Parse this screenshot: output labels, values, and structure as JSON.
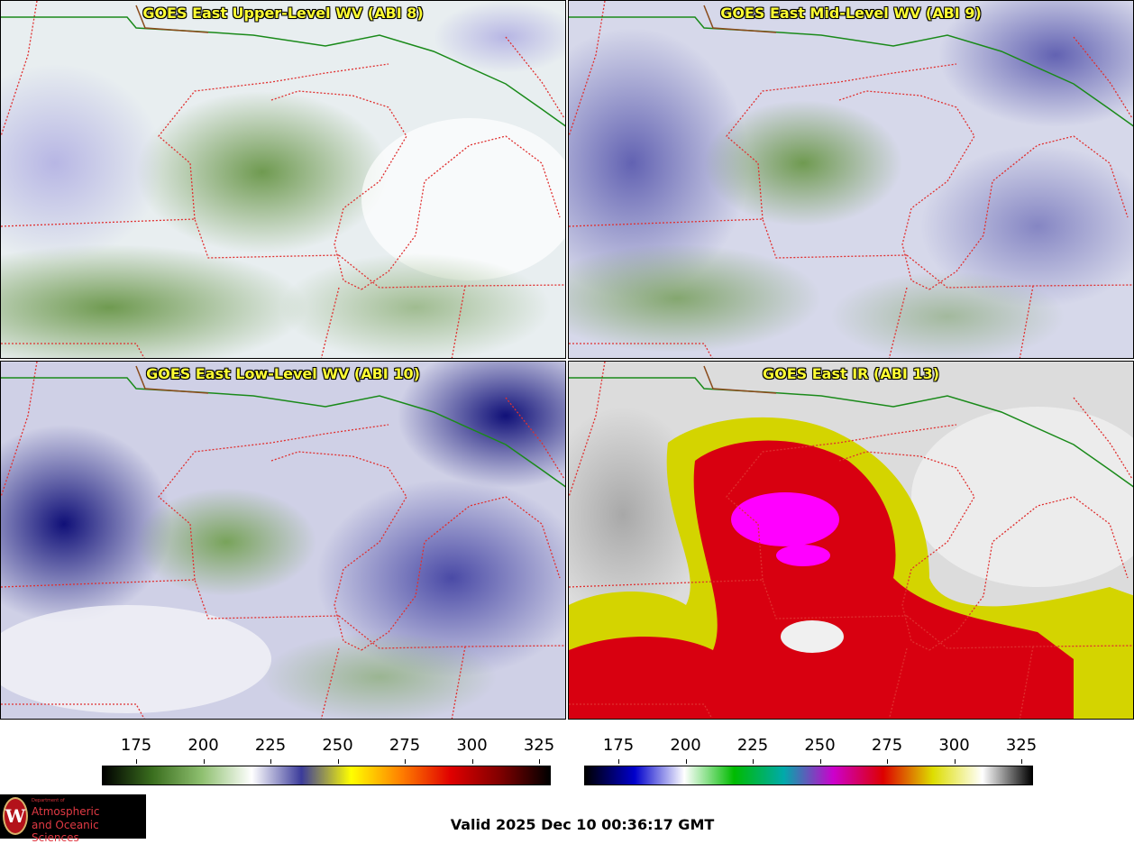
{
  "panels": [
    {
      "title": "GOES East Upper-Level WV (ABI 8)",
      "style": "wv-upper"
    },
    {
      "title": "GOES East Mid-Level WV (ABI 9)",
      "style": "wv-mid"
    },
    {
      "title": "GOES East Low-Level WV (ABI 10)",
      "style": "wv-low"
    },
    {
      "title": "GOES East IR (ABI 13)",
      "style": "ir"
    }
  ],
  "colorbars": [
    {
      "name": "wv-colorbar",
      "ticks": [
        "175",
        "200",
        "225",
        "250",
        "275",
        "300",
        "325"
      ],
      "colors": [
        "#000000",
        "#3a6e1e",
        "#8fc070",
        "#ffffff",
        "#3b3b9a",
        "#ffff00",
        "#ff8000",
        "#e00000",
        "#800000",
        "#000000"
      ]
    },
    {
      "name": "ir-colorbar",
      "ticks": [
        "175",
        "200",
        "225",
        "250",
        "275",
        "300",
        "325"
      ],
      "colors": [
        "#000000",
        "#0000cc",
        "#ffffff",
        "#00bb00",
        "#00aaaa",
        "#cc00cc",
        "#dd0000",
        "#dddd00",
        "#ffffff",
        "#000000"
      ]
    }
  ],
  "logo": {
    "dept": "Department of",
    "line1": "Atmospheric",
    "line2": "and Oceanic Sciences",
    "seal": "W"
  },
  "valid_time": "Valid 2025 Dec 10 00:36:17 GMT",
  "colors": {
    "state_border": "#e03030",
    "intl_border": "#1a8a1a",
    "coast": "#8a4a1a"
  }
}
